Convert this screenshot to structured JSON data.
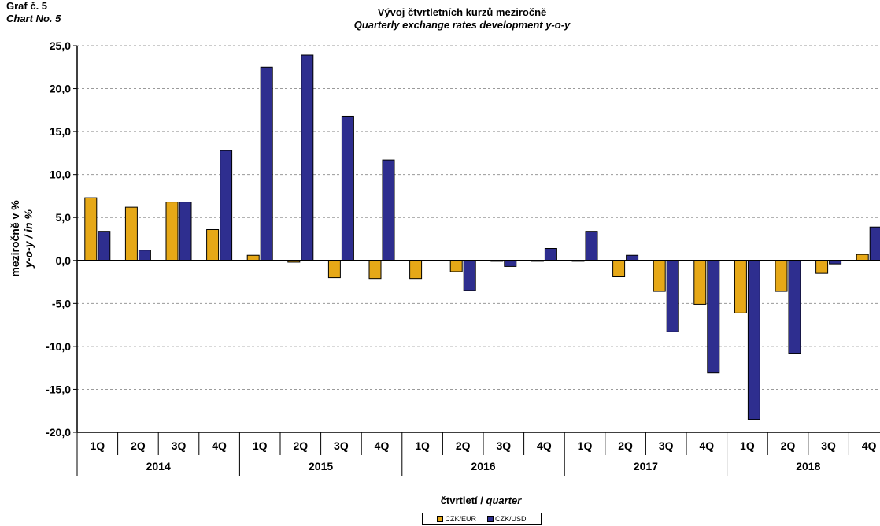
{
  "header": {
    "label_cz": "Graf č. 5",
    "label_en": "Chart No. 5"
  },
  "chart_data": {
    "type": "bar",
    "title": "Vývoj čtvrtletních kurzů meziročně",
    "subtitle": "Quarterly exchange rates development y-o-y",
    "ylabel": "mezir očně v %",
    "ylabel_lines": [
      "meziročně v %",
      "y-o-y / in %"
    ],
    "xlabel_lines": [
      "čtvrtletí / ",
      "quarter"
    ],
    "ylim": [
      -20,
      25
    ],
    "yticks": [
      -20,
      -15,
      -10,
      -5,
      0,
      5,
      10,
      15,
      20,
      25
    ],
    "ytick_labels": [
      "-20,0",
      "-15,0",
      "-10,0",
      "-5,0",
      "0,0",
      "5,0",
      "10,0",
      "15,0",
      "20,0",
      "25,0"
    ],
    "grid": true,
    "legend_position": "bottom",
    "categories": [
      "1Q",
      "2Q",
      "3Q",
      "4Q",
      "1Q",
      "2Q",
      "3Q",
      "4Q",
      "1Q",
      "2Q",
      "3Q",
      "4Q",
      "1Q",
      "2Q",
      "3Q",
      "4Q",
      "1Q",
      "2Q",
      "3Q",
      "4Q"
    ],
    "groups": [
      "2014",
      "2015",
      "2016",
      "2017",
      "2018"
    ],
    "series": [
      {
        "name": "CZK/EUR",
        "color": "#E6A817",
        "values": [
          7.3,
          6.2,
          6.8,
          3.6,
          0.6,
          -0.2,
          -2.0,
          -2.1,
          -2.1,
          -1.3,
          -0.1,
          -0.1,
          -0.1,
          -1.9,
          -3.6,
          -5.1,
          -6.1,
          -3.6,
          -1.5,
          0.7
        ]
      },
      {
        "name": "CZK/USD",
        "color": "#2E2E8F",
        "values": [
          3.4,
          1.2,
          6.8,
          12.8,
          22.5,
          23.9,
          16.8,
          11.7,
          0.0,
          -3.5,
          -0.7,
          1.4,
          3.4,
          0.6,
          -8.3,
          -13.1,
          -18.5,
          -10.8,
          -0.4,
          3.9
        ]
      }
    ]
  }
}
